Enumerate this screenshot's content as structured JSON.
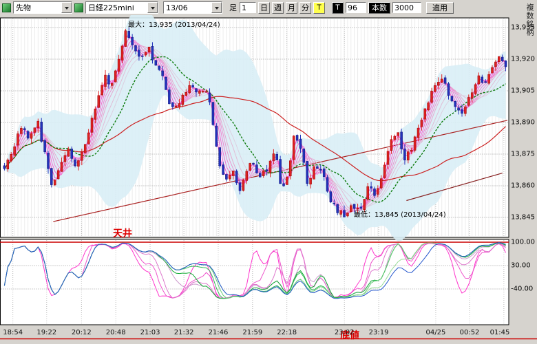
{
  "toolbar": {
    "instrument_type": "先物",
    "instrument": "日経225mini",
    "contract_month": "13/06",
    "bar_label": "足",
    "interval_value": "1",
    "interval_units": [
      "日",
      "週",
      "月",
      "分"
    ],
    "tick_label": "T",
    "tick2_label": "T",
    "tick_count": "96",
    "bars_label": "本数",
    "bars_count": "3000",
    "apply_label": "適用"
  },
  "right_panel": {
    "multi_symbol_label": "複数銘柄"
  },
  "annotations": {
    "ceiling_label": "天井",
    "bottom_label": "底値"
  },
  "colors": {
    "threshold_red": "#cc0000",
    "panel_bg": "#ffffff",
    "app_bg": "#d6d3ce"
  },
  "chart_data": [
    {
      "type": "candlestick",
      "symbol": "日経225mini",
      "contract": "13/06",
      "interval": "1分",
      "ylim": [
        13835,
        13940
      ],
      "yticks": [
        {
          "label": "13,935",
          "value": 13935
        },
        {
          "label": "13,920",
          "value": 13920
        },
        {
          "label": "13,905",
          "value": 13905
        },
        {
          "label": "13,890",
          "value": 13890
        },
        {
          "label": "13,875",
          "value": 13875
        },
        {
          "label": "13,860",
          "value": 13860
        },
        {
          "label": "13,845",
          "value": 13845
        }
      ],
      "x_labels": [
        {
          "label": "18:54",
          "pos": 0.02
        },
        {
          "label": "19:22",
          "pos": 0.087
        },
        {
          "label": "20:12",
          "pos": 0.156
        },
        {
          "label": "20:48",
          "pos": 0.224
        },
        {
          "label": "21:03",
          "pos": 0.292
        },
        {
          "label": "21:32",
          "pos": 0.359
        },
        {
          "label": "21:46",
          "pos": 0.427
        },
        {
          "label": "21:59",
          "pos": 0.495
        },
        {
          "label": "22:18",
          "pos": 0.563
        },
        {
          "label": "23:02",
          "pos": 0.677
        },
        {
          "label": "23:19",
          "pos": 0.745
        },
        {
          "label": "04/25",
          "pos": 0.858
        },
        {
          "label": "00:52",
          "pos": 0.925
        },
        {
          "label": "01:45",
          "pos": 0.993
        }
      ],
      "high": {
        "value": 13935,
        "label": "最大：13,935 (2013/04/24)"
      },
      "low": {
        "value": 13845,
        "label": "最低：13,845 (2013/04/24)"
      },
      "num_candles": 150,
      "up_color": "#dd2222",
      "down_color": "#2233bb",
      "waypoints": [
        [
          0.0,
          13869
        ],
        [
          0.015,
          13876
        ],
        [
          0.035,
          13888
        ],
        [
          0.05,
          13882
        ],
        [
          0.065,
          13892
        ],
        [
          0.08,
          13876
        ],
        [
          0.095,
          13859
        ],
        [
          0.11,
          13870
        ],
        [
          0.125,
          13878
        ],
        [
          0.14,
          13869
        ],
        [
          0.155,
          13876
        ],
        [
          0.17,
          13887
        ],
        [
          0.185,
          13900
        ],
        [
          0.2,
          13914
        ],
        [
          0.212,
          13906
        ],
        [
          0.228,
          13921
        ],
        [
          0.244,
          13934
        ],
        [
          0.258,
          13925
        ],
        [
          0.272,
          13919
        ],
        [
          0.286,
          13927
        ],
        [
          0.3,
          13917
        ],
        [
          0.315,
          13911
        ],
        [
          0.33,
          13899
        ],
        [
          0.345,
          13896
        ],
        [
          0.36,
          13904
        ],
        [
          0.372,
          13909
        ],
        [
          0.385,
          13903
        ],
        [
          0.4,
          13907
        ],
        [
          0.412,
          13897
        ],
        [
          0.425,
          13874
        ],
        [
          0.44,
          13861
        ],
        [
          0.455,
          13869
        ],
        [
          0.468,
          13858
        ],
        [
          0.48,
          13866
        ],
        [
          0.495,
          13871
        ],
        [
          0.51,
          13863
        ],
        [
          0.525,
          13869
        ],
        [
          0.54,
          13876
        ],
        [
          0.553,
          13858
        ],
        [
          0.565,
          13864
        ],
        [
          0.578,
          13886
        ],
        [
          0.592,
          13876
        ],
        [
          0.605,
          13861
        ],
        [
          0.62,
          13871
        ],
        [
          0.635,
          13866
        ],
        [
          0.65,
          13854
        ],
        [
          0.665,
          13848
        ],
        [
          0.68,
          13845
        ],
        [
          0.695,
          13851
        ],
        [
          0.71,
          13847
        ],
        [
          0.725,
          13860
        ],
        [
          0.74,
          13856
        ],
        [
          0.755,
          13867
        ],
        [
          0.77,
          13880
        ],
        [
          0.785,
          13885
        ],
        [
          0.798,
          13872
        ],
        [
          0.812,
          13877
        ],
        [
          0.828,
          13889
        ],
        [
          0.842,
          13897
        ],
        [
          0.858,
          13907
        ],
        [
          0.872,
          13912
        ],
        [
          0.886,
          13904
        ],
        [
          0.9,
          13897
        ],
        [
          0.914,
          13894
        ],
        [
          0.928,
          13902
        ],
        [
          0.944,
          13912
        ],
        [
          0.958,
          13907
        ],
        [
          0.972,
          13917
        ],
        [
          0.986,
          13921
        ],
        [
          1.0,
          13917
        ]
      ],
      "band": {
        "period": 20,
        "mult": 2,
        "color": "#d9eef6"
      },
      "ma_ribbon": {
        "periods": [
          2,
          3,
          4,
          5,
          6,
          7,
          9,
          11
        ],
        "colors": [
          "#ff44d0",
          "#fa58d0",
          "#f56cd0",
          "#f080d0",
          "#eb94d0",
          "#e6a8d0",
          "#e1bcd6",
          "#dccfe0"
        ]
      },
      "ma_green": {
        "period": 16,
        "color": "#0a7a0a"
      },
      "ma_red": {
        "period": 48,
        "color": "#cc2222"
      },
      "trendlines": [
        {
          "points": [
            [
              0.1,
              13843
            ],
            [
              1.0,
              13891
            ]
          ],
          "color": "#aa2222"
        },
        {
          "points": [
            [
              0.8,
              13853
            ],
            [
              0.99,
              13866
            ]
          ],
          "color": "#882222"
        }
      ]
    },
    {
      "type": "oscillator",
      "ylim": [
        -147,
        106
      ],
      "yticks": [
        {
          "label": "100.00",
          "value": 100
        },
        {
          "label": "30.00",
          "value": 30
        },
        {
          "label": "-40.00",
          "value": -40
        }
      ],
      "ceiling_value": 100,
      "series": [
        {
          "period": 9,
          "color": "#ff33cc"
        },
        {
          "period": 13,
          "color": "#ee55cc"
        },
        {
          "period": 18,
          "color": "#dd77cc"
        },
        {
          "period": 26,
          "color": "#cc99cc"
        },
        {
          "period": 30,
          "color": "#11aa33"
        },
        {
          "period": 38,
          "color": "#33bb55"
        },
        {
          "period": 46,
          "color": "#66cc77"
        },
        {
          "period": 56,
          "color": "#99dd99"
        },
        {
          "period": 70,
          "color": "#2255cc"
        }
      ]
    }
  ]
}
